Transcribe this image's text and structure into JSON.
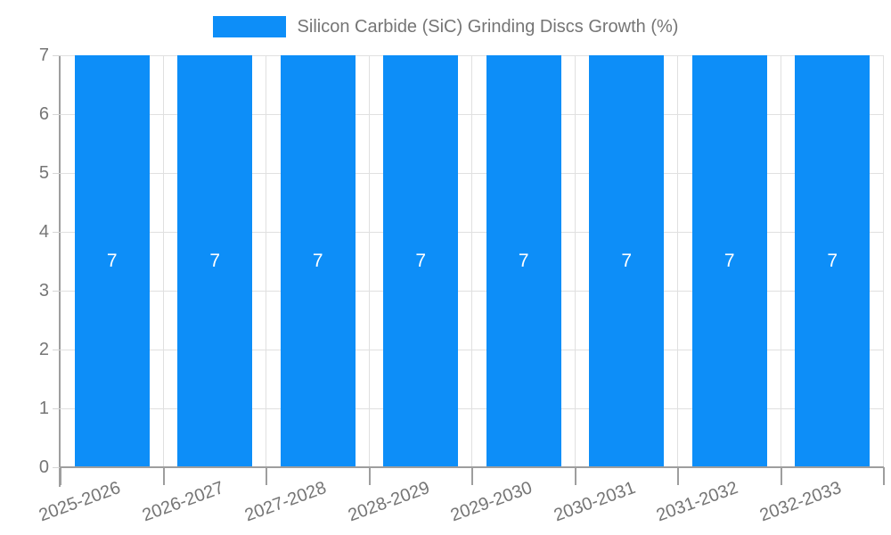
{
  "chart_data": {
    "type": "bar",
    "title": "Silicon Carbide (SiC) Grinding Discs Growth (%)",
    "categories": [
      "2025-2026",
      "2026-2027",
      "2027-2028",
      "2028-2029",
      "2029-2030",
      "2030-2031",
      "2031-2032",
      "2032-2033"
    ],
    "values": [
      7,
      7,
      7,
      7,
      7,
      7,
      7,
      7
    ],
    "bar_labels": [
      "7",
      "7",
      "7",
      "7",
      "7",
      "7",
      "7",
      "7"
    ],
    "xlabel": "",
    "ylabel": "",
    "ylim": [
      0,
      7
    ],
    "y_ticks": [
      0,
      1,
      2,
      3,
      4,
      5,
      6,
      7
    ],
    "y_tick_labels": [
      "0",
      "1",
      "2",
      "3",
      "4",
      "5",
      "6",
      "7"
    ],
    "grid": true,
    "legend_position": "top",
    "colors": {
      "bar": "#0d8ef8",
      "bar_label": "#ffffff",
      "axis": "#9e9e9e",
      "gridline": "#e0e0e0",
      "text": "#757575",
      "background": "#ffffff"
    }
  }
}
